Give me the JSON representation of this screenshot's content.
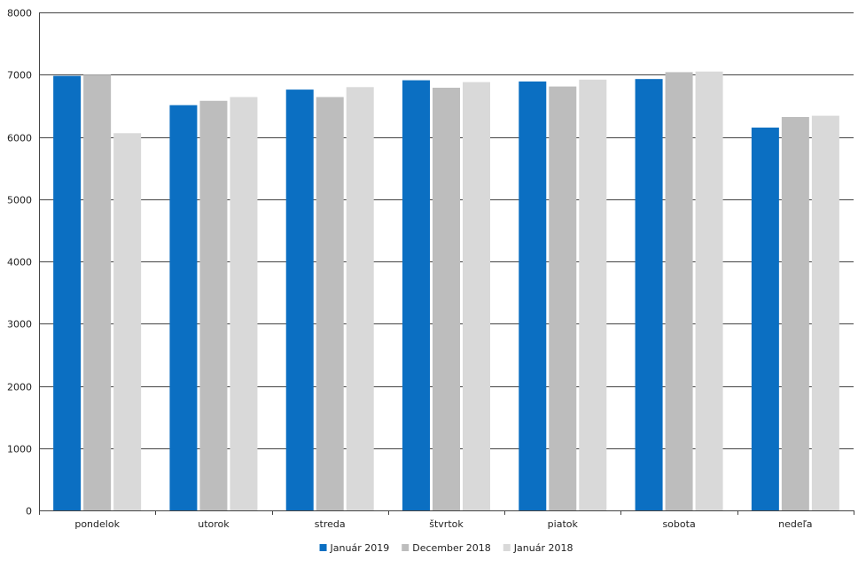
{
  "chart_data": {
    "type": "bar",
    "title": "",
    "xlabel": "",
    "ylabel": "",
    "categories": [
      "pondelok",
      "utorok",
      "streda",
      "štvrtok",
      "piatok",
      "sobota",
      "nedeľa"
    ],
    "series": [
      {
        "name": "Január 2019",
        "color": "#0b6fc2",
        "values": [
          6980,
          6510,
          6760,
          6910,
          6890,
          6930,
          6150
        ]
      },
      {
        "name": "December 2018",
        "color": "#bdbdbd",
        "values": [
          7000,
          6580,
          6640,
          6790,
          6810,
          7040,
          6320
        ]
      },
      {
        "name": "Január 2018",
        "color": "#d9d9d9",
        "values": [
          6060,
          6640,
          6800,
          6880,
          6920,
          7050,
          6340
        ]
      }
    ],
    "ylim": [
      0,
      8000
    ],
    "yticks": [
      0,
      1000,
      2000,
      3000,
      4000,
      5000,
      6000,
      7000,
      8000
    ],
    "grid": true,
    "legend_position": "bottom"
  }
}
